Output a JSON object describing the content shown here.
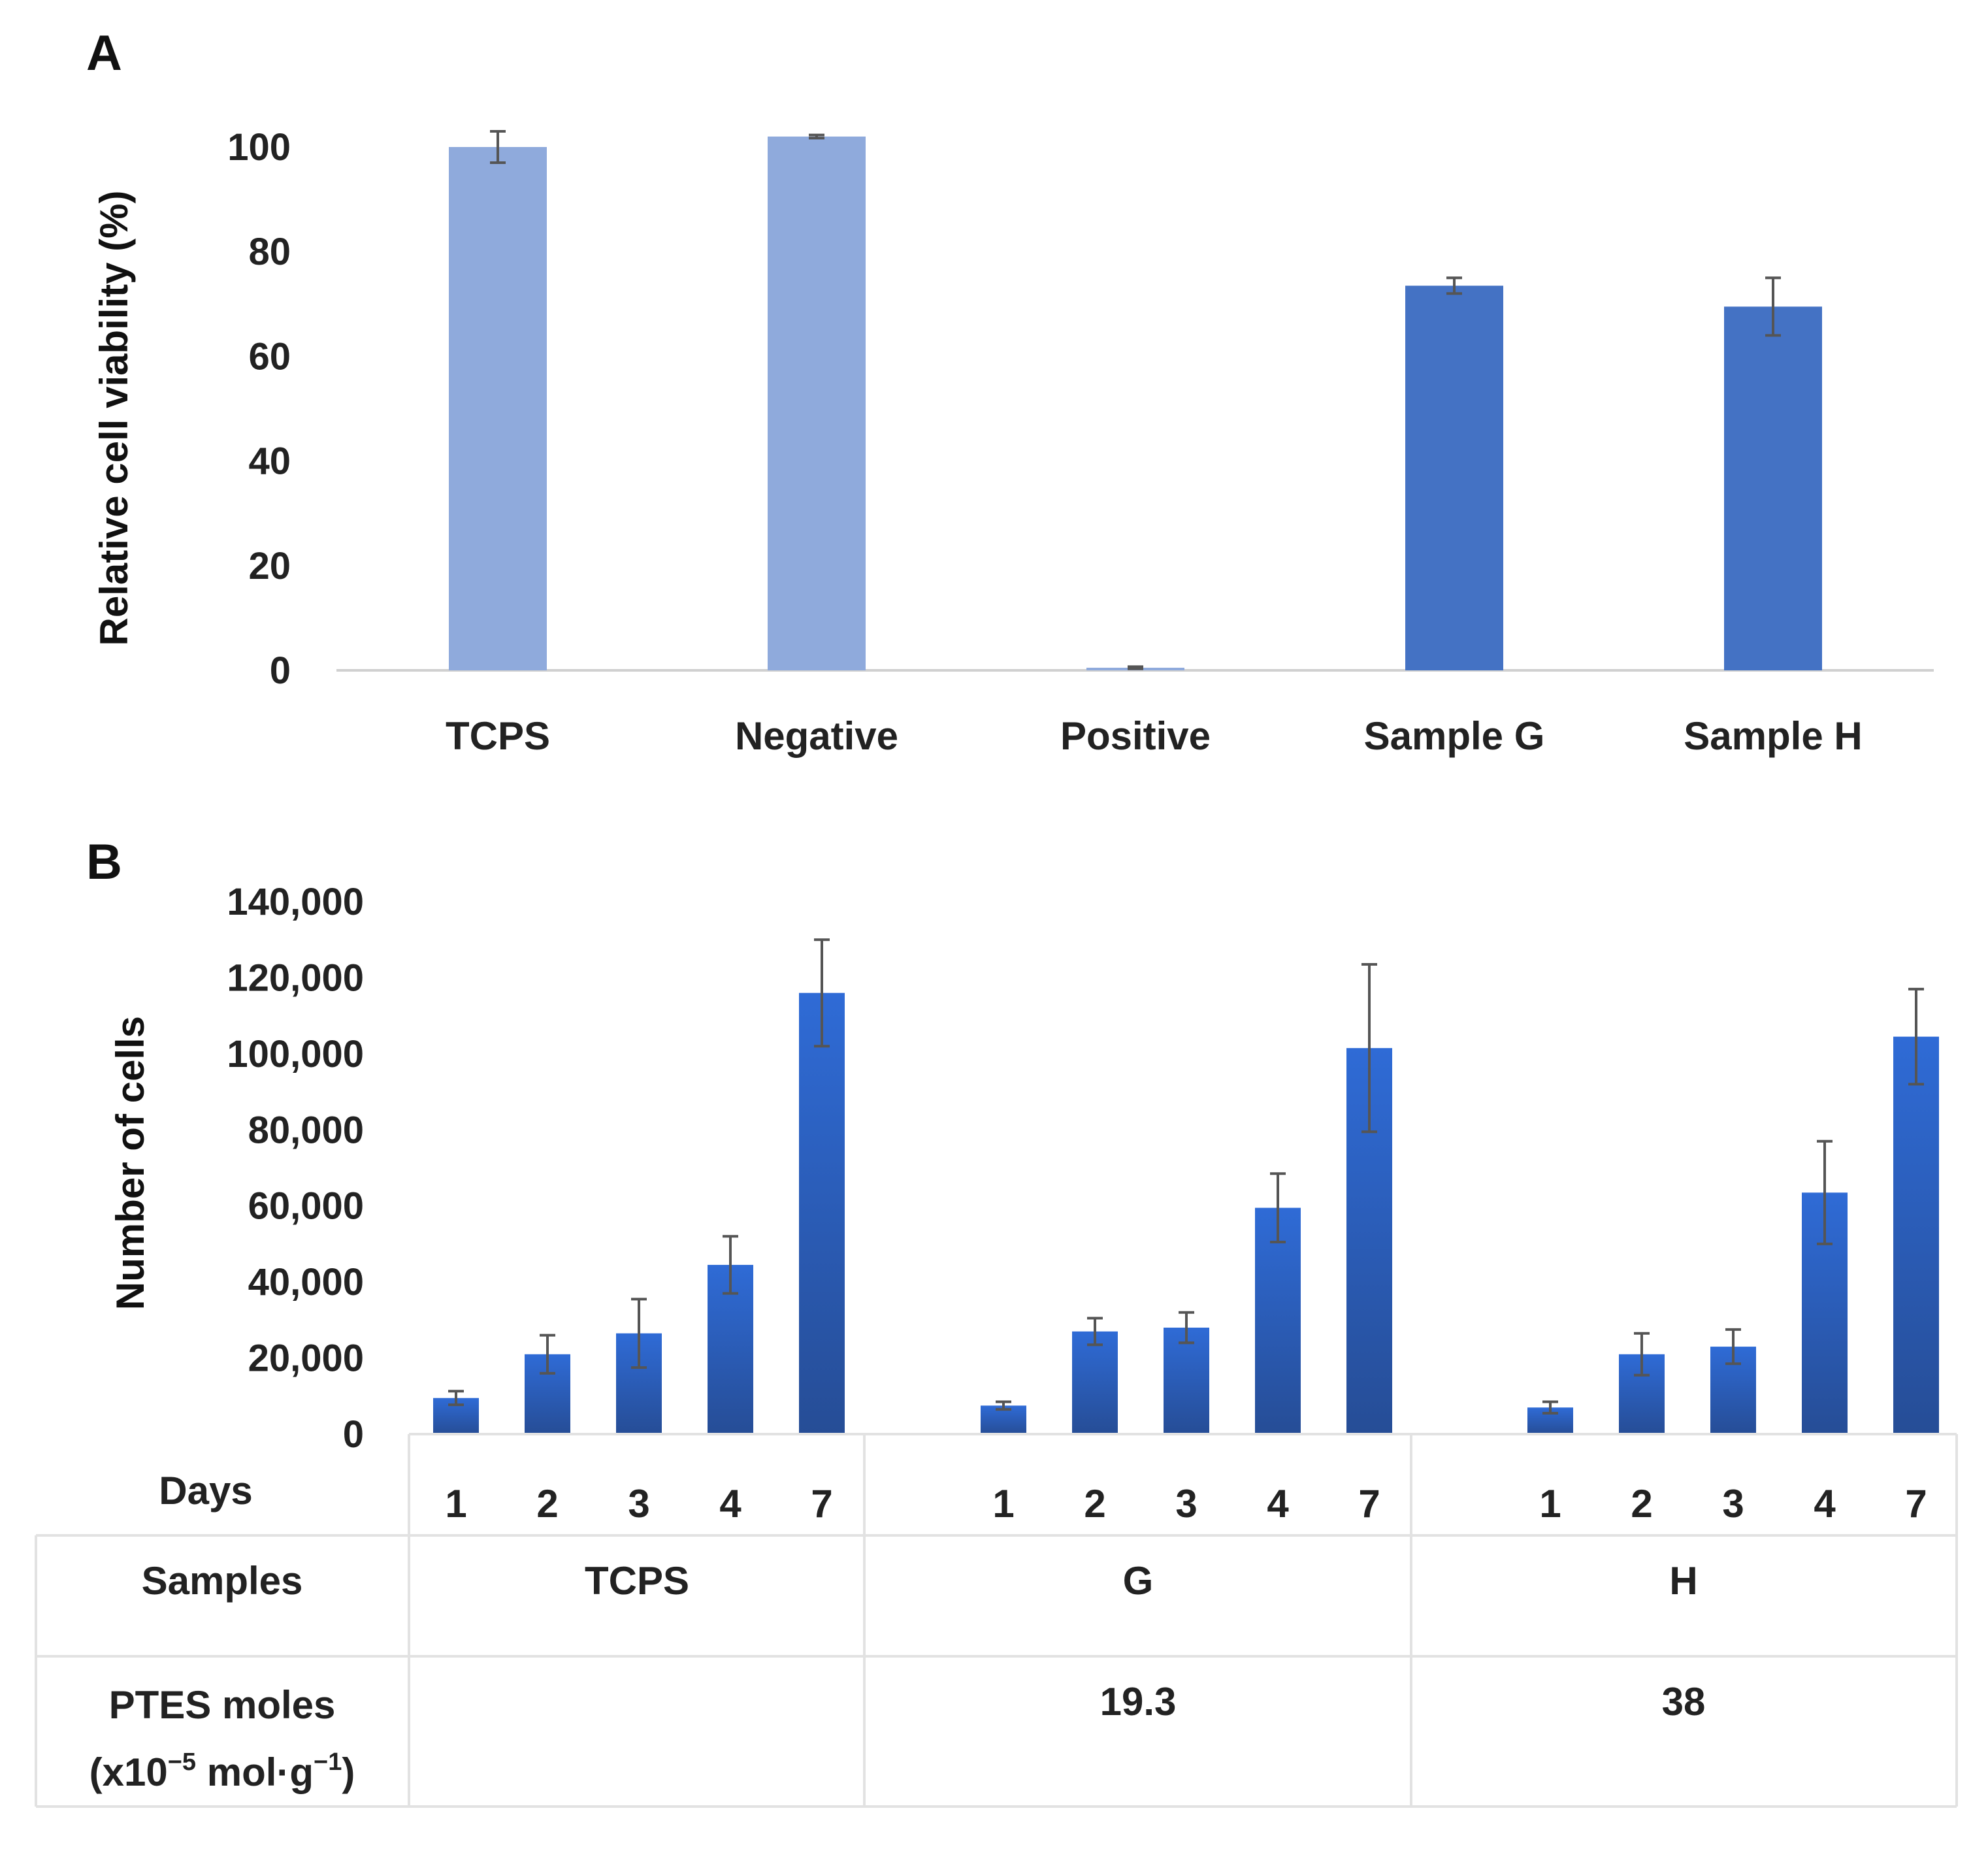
{
  "panel_a": {
    "letter": "A"
  },
  "panel_b": {
    "letter": "B"
  },
  "colors": {
    "light_bar": "#8FAADC",
    "dark_bar": "#4472C4",
    "grad_top": "#2F6BD6",
    "grad_bottom": "#264D96",
    "error": "#555555"
  },
  "table": {
    "days_label": "Days",
    "samples_label": "Samples",
    "ptes_label_line1": "PTES moles",
    "ptes_label_line2_prefix": "(x10",
    "ptes_label_line2_exp1": "−5",
    "ptes_label_line2_mid": " mol·g",
    "ptes_label_line2_exp2": "−1",
    "ptes_label_line2_suffix": ")",
    "groups": [
      {
        "sample": "TCPS",
        "ptes": ""
      },
      {
        "sample": "G",
        "ptes": "19.3"
      },
      {
        "sample": "H",
        "ptes": "38"
      }
    ]
  },
  "chart_data": [
    {
      "type": "bar",
      "panel": "A",
      "ylabel": "Relative cell viability  (%)",
      "xlabel": "",
      "ylim": [
        0,
        100
      ],
      "yticks": [
        "0",
        "20",
        "40",
        "60",
        "80",
        "100"
      ],
      "categories": [
        "TCPS",
        "Negative",
        "Positive",
        "Sample G",
        "Sample H"
      ],
      "values": [
        100,
        102,
        0.5,
        73.5,
        69.5
      ],
      "errors": [
        3,
        0.3,
        0.2,
        1.5,
        5.5
      ],
      "bar_colors": [
        "light",
        "light",
        "light",
        "dark",
        "dark"
      ]
    },
    {
      "type": "bar",
      "panel": "B",
      "ylabel": "Number of cells",
      "xlabel": "",
      "ylim": [
        0,
        140000
      ],
      "yticks": [
        "0",
        "20,000",
        "40,000",
        "60,000",
        "80,000",
        "100,000",
        "120,000",
        "140,000"
      ],
      "x": [
        "1",
        "2",
        "3",
        "4",
        "7"
      ],
      "groups": [
        "TCPS",
        "G",
        "H"
      ],
      "series": [
        {
          "values": [
            9500,
            21000,
            26500,
            44500,
            116000
          ],
          "errors": [
            1800,
            5000,
            9000,
            7500,
            14000
          ]
        },
        {
          "values": [
            7500,
            27000,
            28000,
            59500,
            101500
          ],
          "errors": [
            1000,
            3500,
            4000,
            9000,
            22000
          ]
        },
        {
          "values": [
            7000,
            21000,
            23000,
            63500,
            104500
          ],
          "errors": [
            1500,
            5500,
            4500,
            13500,
            12500
          ]
        }
      ]
    }
  ]
}
